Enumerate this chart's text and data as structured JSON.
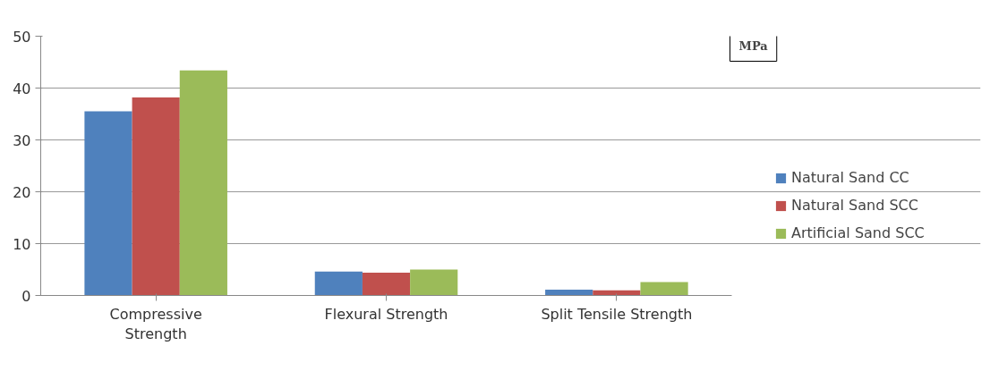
{
  "chart_data": {
    "type": "bar",
    "categories": [
      "Compressive\nStrength",
      "Flexural Strength",
      "Split Tensile Strength"
    ],
    "series": [
      {
        "name": "Natural Sand CC",
        "color": "#4f81bd",
        "values": [
          35.5,
          4.6,
          1.1
        ]
      },
      {
        "name": "Natural Sand SCC",
        "color": "#c0504d",
        "values": [
          38.2,
          4.4,
          1.0
        ]
      },
      {
        "name": "Artificial Sand SCC",
        "color": "#9bbb59",
        "values": [
          43.4,
          5.0,
          2.6
        ]
      }
    ],
    "ylim": [
      0,
      50
    ],
    "yticks": [
      0,
      10,
      20,
      30,
      40,
      50
    ],
    "grid": "y",
    "legend": "right",
    "annotations": [
      "MPa"
    ]
  }
}
